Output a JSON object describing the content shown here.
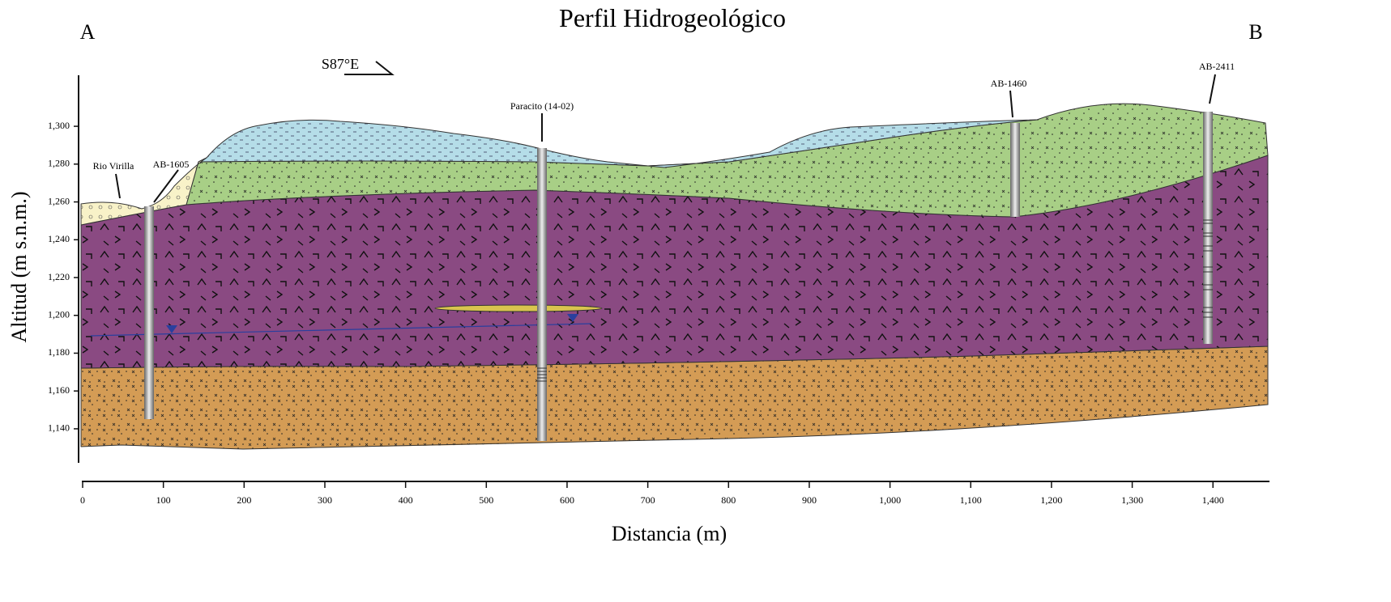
{
  "title": "Perfil Hidrogeológico",
  "corner_labels": [
    "A",
    "B"
  ],
  "direction": "S87°E",
  "y_axis": {
    "label": "Altitud (m s.n.m.)",
    "lim": [
      1122,
      1327
    ],
    "ticks": [
      {
        "value": 1140,
        "label": "1,140"
      },
      {
        "value": 1160,
        "label": "1,160"
      },
      {
        "value": 1180,
        "label": "1,180"
      },
      {
        "value": 1200,
        "label": "1,200"
      },
      {
        "value": 1220,
        "label": "1,220"
      },
      {
        "value": 1240,
        "label": "1,240"
      },
      {
        "value": 1260,
        "label": "1,260"
      },
      {
        "value": 1280,
        "label": "1,280"
      },
      {
        "value": 1300,
        "label": "1,300"
      }
    ]
  },
  "x_axis": {
    "label": "Distancia (m)",
    "lim": [
      0,
      1470
    ],
    "ticks": [
      0,
      100,
      200,
      300,
      400,
      500,
      600,
      700,
      800,
      900,
      {
        "value": 1000,
        "label": "1,000"
      },
      {
        "value": 1100,
        "label": "1,100"
      },
      {
        "value": 1200,
        "label": "1,200"
      },
      {
        "value": 1300,
        "label": "1,300"
      },
      {
        "value": 1400,
        "label": "1,400"
      }
    ]
  },
  "annotations": [
    "Rio Virilla",
    "AB-1605",
    "Paracito (14-02)",
    "AB-1460",
    "AB-2411"
  ]
}
